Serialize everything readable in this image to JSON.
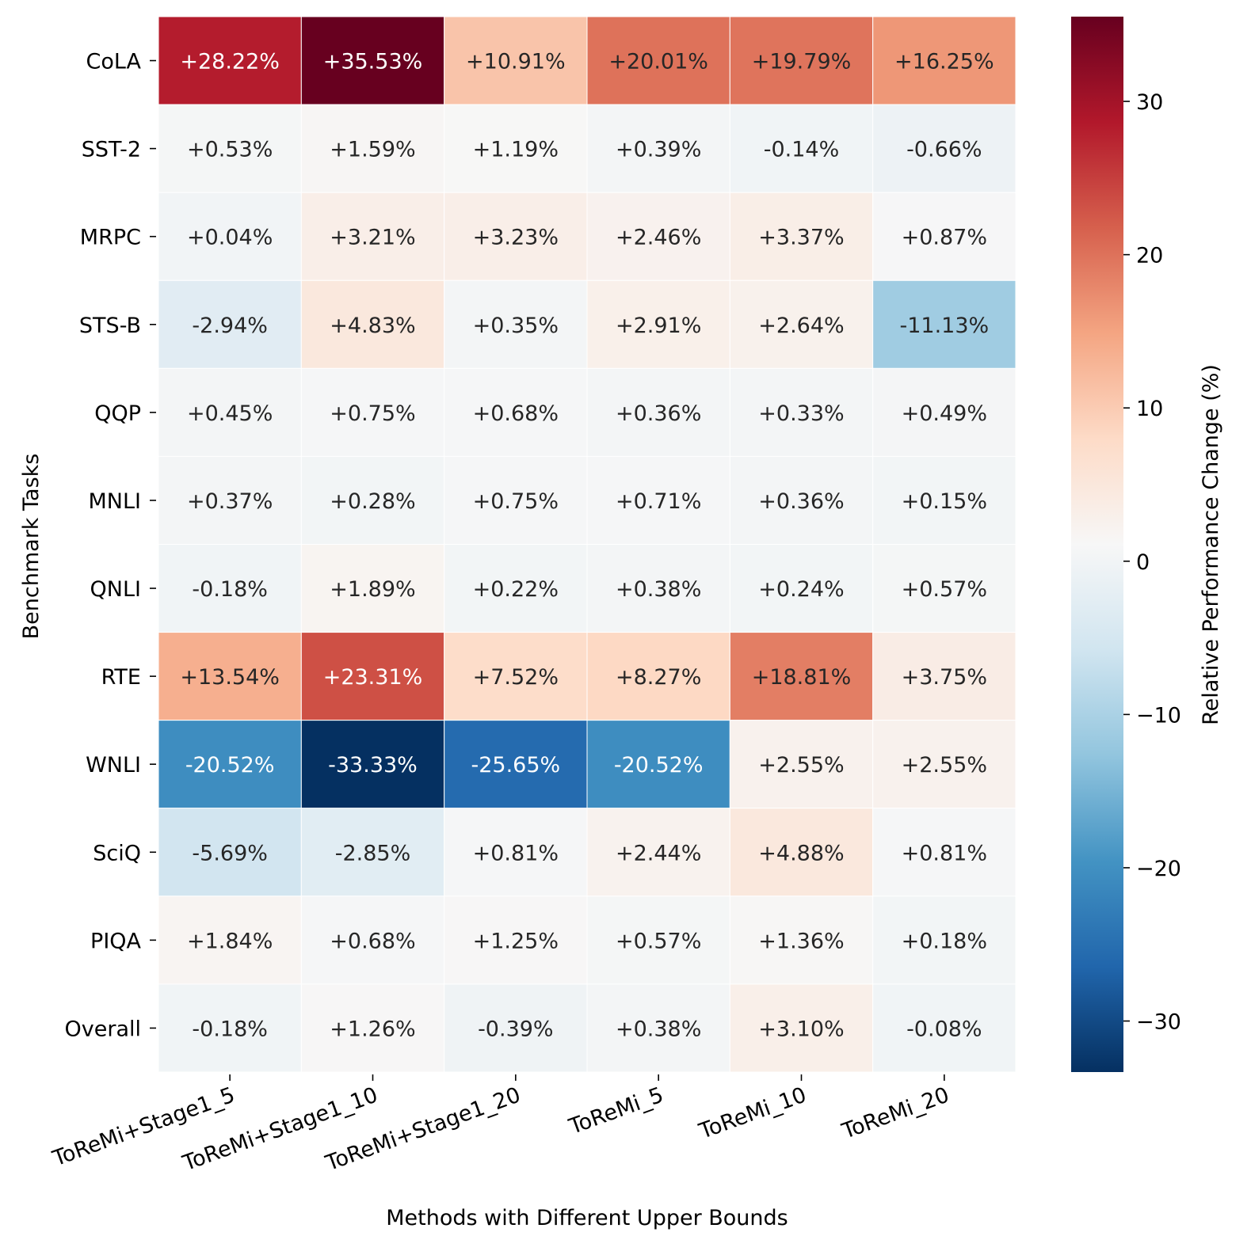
{
  "chart_data": {
    "type": "heatmap",
    "xlabel": "Methods with Different Upper Bounds",
    "ylabel": "Benchmark Tasks",
    "colorbar_label": "Relative Performance Change (%)",
    "colorbar_range": [
      -33.33,
      35.53
    ],
    "colorbar_ticks": [
      "30",
      "20",
      "10",
      "0",
      "−10",
      "−20",
      "−30"
    ],
    "colorbar_tick_values": [
      30,
      20,
      10,
      0,
      -10,
      -20,
      -30
    ],
    "columns": [
      "ToReMi+Stage1_5",
      "ToReMi+Stage1_10",
      "ToReMi+Stage1_20",
      "ToReMi_5",
      "ToReMi_10",
      "ToReMi_20"
    ],
    "rows": [
      "CoLA",
      "SST-2",
      "MRPC",
      "STS-B",
      "QQP",
      "MNLI",
      "QNLI",
      "RTE",
      "WNLI",
      "SciQ",
      "PIQA",
      "Overall"
    ],
    "values": [
      [
        28.22,
        35.53,
        10.91,
        20.01,
        19.79,
        16.25
      ],
      [
        0.53,
        1.59,
        1.19,
        0.39,
        -0.14,
        -0.66
      ],
      [
        0.04,
        3.21,
        3.23,
        2.46,
        3.37,
        0.87
      ],
      [
        -2.94,
        4.83,
        0.35,
        2.91,
        2.64,
        -11.13
      ],
      [
        0.45,
        0.75,
        0.68,
        0.36,
        0.33,
        0.49
      ],
      [
        0.37,
        0.28,
        0.75,
        0.71,
        0.36,
        0.15
      ],
      [
        -0.18,
        1.89,
        0.22,
        0.38,
        0.24,
        0.57
      ],
      [
        13.54,
        23.31,
        7.52,
        8.27,
        18.81,
        3.75
      ],
      [
        -20.52,
        -33.33,
        -25.65,
        -20.52,
        2.55,
        2.55
      ],
      [
        -5.69,
        -2.85,
        0.81,
        2.44,
        4.88,
        0.81
      ],
      [
        1.84,
        0.68,
        1.25,
        0.57,
        1.36,
        0.18
      ],
      [
        -0.18,
        1.26,
        -0.39,
        0.38,
        3.1,
        -0.08
      ]
    ],
    "labels": [
      [
        "+28.22%",
        "+35.53%",
        "+10.91%",
        "+20.01%",
        "+19.79%",
        "+16.25%"
      ],
      [
        "+0.53%",
        "+1.59%",
        "+1.19%",
        "+0.39%",
        "-0.14%",
        "-0.66%"
      ],
      [
        "+0.04%",
        "+3.21%",
        "+3.23%",
        "+2.46%",
        "+3.37%",
        "+0.87%"
      ],
      [
        "-2.94%",
        "+4.83%",
        "+0.35%",
        "+2.91%",
        "+2.64%",
        "-11.13%"
      ],
      [
        "+0.45%",
        "+0.75%",
        "+0.68%",
        "+0.36%",
        "+0.33%",
        "+0.49%"
      ],
      [
        "+0.37%",
        "+0.28%",
        "+0.75%",
        "+0.71%",
        "+0.36%",
        "+0.15%"
      ],
      [
        "-0.18%",
        "+1.89%",
        "+0.22%",
        "+0.38%",
        "+0.24%",
        "+0.57%"
      ],
      [
        "+13.54%",
        "+23.31%",
        "+7.52%",
        "+8.27%",
        "+18.81%",
        "+3.75%"
      ],
      [
        "-20.52%",
        "-33.33%",
        "-25.65%",
        "-20.52%",
        "+2.55%",
        "+2.55%"
      ],
      [
        "-5.69%",
        "-2.85%",
        "+0.81%",
        "+2.44%",
        "+4.88%",
        "+0.81%"
      ],
      [
        "+1.84%",
        "+0.68%",
        "+1.25%",
        "+0.57%",
        "+1.36%",
        "+0.18%"
      ],
      [
        "-0.18%",
        "+1.26%",
        "-0.39%",
        "+0.38%",
        "+3.10%",
        "-0.08%"
      ]
    ],
    "colormap": "RdBu_r",
    "colormap_stops": [
      "#053061",
      "#2166ac",
      "#4393c3",
      "#92c5de",
      "#d1e5f0",
      "#f7f7f7",
      "#fddbc7",
      "#f4a582",
      "#d6604d",
      "#b2182b",
      "#67001f"
    ]
  }
}
